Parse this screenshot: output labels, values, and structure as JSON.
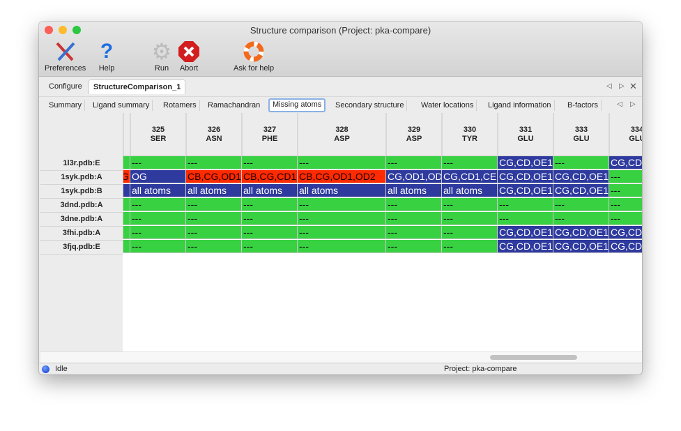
{
  "window": {
    "title": "Structure comparison (Project: pka-compare)"
  },
  "toolbar": [
    {
      "label": "Preferences",
      "icon": "wrench-screwdriver-icon"
    },
    {
      "label": "Help",
      "icon": "question-icon"
    },
    {
      "label": "Run",
      "icon": "gear-icon"
    },
    {
      "label": "Abort",
      "icon": "stop-x-icon"
    },
    {
      "label": "Ask for help",
      "icon": "lifebuoy-icon"
    }
  ],
  "main_tabs": [
    {
      "label": "Configure",
      "active": false
    },
    {
      "label": "StructureComparison_1",
      "active": true
    }
  ],
  "sub_tabs": [
    {
      "label": "Summary"
    },
    {
      "label": "Ligand summary"
    },
    {
      "label": "Rotamers"
    },
    {
      "label": "Ramachandran"
    },
    {
      "label": "Missing atoms",
      "active": true
    },
    {
      "label": "Secondary structure"
    },
    {
      "label": "Water locations"
    },
    {
      "label": "Ligand information"
    },
    {
      "label": "B-factors"
    }
  ],
  "colors": {
    "green": "#38d142",
    "blue": "#2e3a9e",
    "red": "#ff2a00"
  },
  "table": {
    "rows": [
      "1l3r.pdb:E",
      "1syk.pdb:A",
      "1syk.pdb:B",
      "3dnd.pdb:A",
      "3dne.pdb:A",
      "3fhi.pdb:A",
      "3fjq.pdb:E"
    ],
    "columns": [
      {
        "num": "",
        "res": "",
        "cells": [
          [
            "",
            "green"
          ],
          [
            "G",
            "red"
          ],
          [
            "",
            "blue"
          ],
          [
            "",
            "green"
          ],
          [
            "",
            "green"
          ],
          [
            "",
            "green"
          ],
          [
            "",
            "green"
          ]
        ]
      },
      {
        "num": "325",
        "res": "SER",
        "cells": [
          [
            "---",
            "green"
          ],
          [
            "OG",
            "blue"
          ],
          [
            "all atoms",
            "blue"
          ],
          [
            "---",
            "green"
          ],
          [
            "---",
            "green"
          ],
          [
            "---",
            "green"
          ],
          [
            "---",
            "green"
          ]
        ]
      },
      {
        "num": "326",
        "res": "ASN",
        "cells": [
          [
            "---",
            "green"
          ],
          [
            "CB,CG,OD1",
            "red"
          ],
          [
            "all atoms",
            "blue"
          ],
          [
            "---",
            "green"
          ],
          [
            "---",
            "green"
          ],
          [
            "---",
            "green"
          ],
          [
            "---",
            "green"
          ]
        ]
      },
      {
        "num": "327",
        "res": "PHE",
        "cells": [
          [
            "---",
            "green"
          ],
          [
            "CB,CG,CD1",
            "red"
          ],
          [
            "all atoms",
            "blue"
          ],
          [
            "---",
            "green"
          ],
          [
            "---",
            "green"
          ],
          [
            "---",
            "green"
          ],
          [
            "---",
            "green"
          ]
        ]
      },
      {
        "num": "328",
        "res": "ASP",
        "cells": [
          [
            "---",
            "green"
          ],
          [
            "CB,CG,OD1,OD2",
            "red"
          ],
          [
            "all atoms",
            "blue"
          ],
          [
            "---",
            "green"
          ],
          [
            "---",
            "green"
          ],
          [
            "---",
            "green"
          ],
          [
            "---",
            "green"
          ]
        ]
      },
      {
        "num": "329",
        "res": "ASP",
        "cells": [
          [
            "---",
            "green"
          ],
          [
            "CG,OD1,OD",
            "blue"
          ],
          [
            "all atoms",
            "blue"
          ],
          [
            "---",
            "green"
          ],
          [
            "---",
            "green"
          ],
          [
            "---",
            "green"
          ],
          [
            "---",
            "green"
          ]
        ]
      },
      {
        "num": "330",
        "res": "TYR",
        "cells": [
          [
            "---",
            "green"
          ],
          [
            "CG,CD1,CE",
            "blue"
          ],
          [
            "all atoms",
            "blue"
          ],
          [
            "---",
            "green"
          ],
          [
            "---",
            "green"
          ],
          [
            "---",
            "green"
          ],
          [
            "---",
            "green"
          ]
        ]
      },
      {
        "num": "331",
        "res": "GLU",
        "cells": [
          [
            "CG,CD,OE1",
            "blue"
          ],
          [
            "CG,CD,OE1",
            "blue"
          ],
          [
            "CG,CD,OE1",
            "blue"
          ],
          [
            "---",
            "green"
          ],
          [
            "---",
            "green"
          ],
          [
            "CG,CD,OE1",
            "blue"
          ],
          [
            "CG,CD,OE1",
            "blue"
          ]
        ]
      },
      {
        "num": "333",
        "res": "GLU",
        "cells": [
          [
            "---",
            "green"
          ],
          [
            "CG,CD,OE1",
            "blue"
          ],
          [
            "CG,CD,OE1",
            "blue"
          ],
          [
            "---",
            "green"
          ],
          [
            "---",
            "green"
          ],
          [
            "CG,CD,OE1",
            "blue"
          ],
          [
            "CG,CD,OE1",
            "blue"
          ]
        ]
      },
      {
        "num": "334",
        "res": "GLU",
        "cells": [
          [
            "CG,CD",
            "blue"
          ],
          [
            "---",
            "green"
          ],
          [
            "---",
            "green"
          ],
          [
            "---",
            "green"
          ],
          [
            "---",
            "green"
          ],
          [
            "CG,CD",
            "blue"
          ],
          [
            "CG,CD",
            "blue"
          ]
        ]
      }
    ]
  },
  "status": {
    "state": "Idle",
    "project": "Project: pka-compare"
  }
}
